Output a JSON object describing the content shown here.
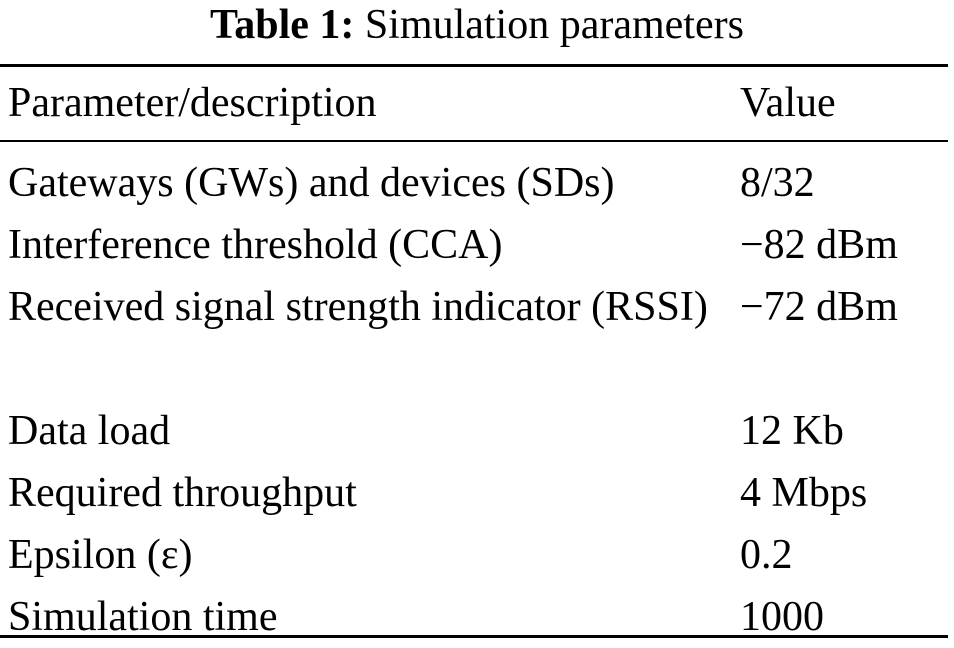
{
  "caption": {
    "label": "Table 1:",
    "title": "Simulation parameters"
  },
  "table": {
    "headers": {
      "parameter": "Parameter/description",
      "value": "Value"
    },
    "rows": [
      {
        "parameter": "Gateways (GWs) and devices (SDs)",
        "value": "8/32"
      },
      {
        "parameter": "Interference threshold (CCA)",
        "value": "−82 dBm"
      },
      {
        "parameter": "Received signal strength indicator (RSSI)",
        "value": "−72 dBm"
      },
      {
        "parameter": "Data load",
        "value": "12 Kb"
      },
      {
        "parameter": "Required throughput",
        "value": "4 Mbps"
      },
      {
        "parameter": "Epsilon (ε)",
        "value": "0.2"
      },
      {
        "parameter": "Simulation time",
        "value": "1000"
      }
    ]
  }
}
